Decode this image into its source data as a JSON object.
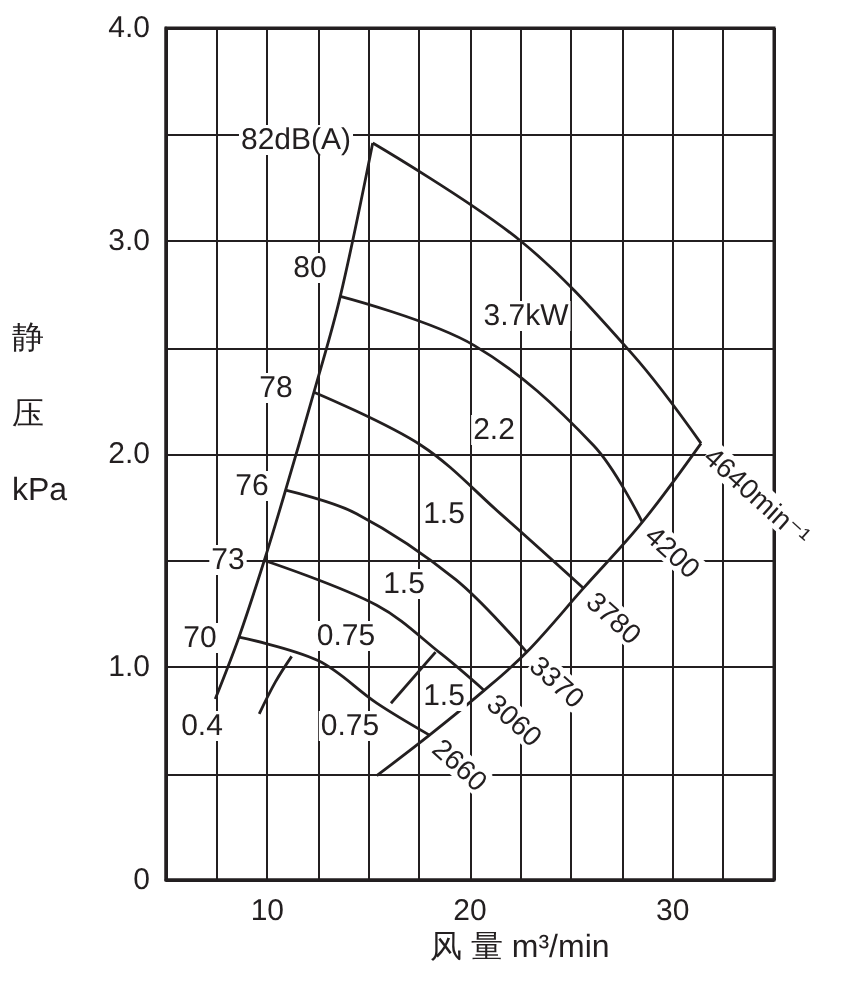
{
  "chart_data": {
    "type": "line",
    "xlabel": "风 量 m³/min",
    "ylabel": "静压 kPa",
    "xlim": [
      5,
      35
    ],
    "ylim": [
      0,
      4
    ],
    "xticks": [
      {
        "value": 5,
        "label": null
      },
      {
        "value": 7.5,
        "label": null
      },
      {
        "value": 10,
        "label": "10"
      },
      {
        "value": 12.5,
        "label": null
      },
      {
        "value": 15,
        "label": null
      },
      {
        "value": 17.5,
        "label": null
      },
      {
        "value": 20,
        "label": "20"
      },
      {
        "value": 22.5,
        "label": null
      },
      {
        "value": 25,
        "label": null
      },
      {
        "value": 27.5,
        "label": null
      },
      {
        "value": 30,
        "label": "30"
      },
      {
        "value": 32.5,
        "label": null
      },
      {
        "value": 35,
        "label": null
      }
    ],
    "yticks": [
      {
        "value": 0,
        "label": "0"
      },
      {
        "value": 0.5,
        "label": null
      },
      {
        "value": 1,
        "label": "1.0"
      },
      {
        "value": 1.5,
        "label": null
      },
      {
        "value": 2,
        "label": "2.0"
      },
      {
        "value": 2.5,
        "label": null
      },
      {
        "value": 3,
        "label": "3.0"
      },
      {
        "value": 3.5,
        "label": null
      },
      {
        "value": 4,
        "label": "4.0"
      }
    ],
    "grid": true,
    "marker": "none",
    "line_style": "solid",
    "series": [
      {
        "name": "2660",
        "color": "#231f20",
        "x": [
          8.6,
          12.5,
          15.4,
          18.0
        ],
        "values": [
          1.14,
          1.03,
          0.83,
          0.68
        ]
      },
      {
        "name": "3060",
        "color": "#231f20",
        "x": [
          9.85,
          15.4,
          18.6,
          20.7
        ],
        "values": [
          1.5,
          1.29,
          1.06,
          0.89
        ]
      },
      {
        "name": "3370",
        "color": "#231f20",
        "x": [
          10.9,
          14.4,
          19.3,
          22.8
        ],
        "values": [
          1.83,
          1.72,
          1.41,
          1.07
        ]
      },
      {
        "name": "3780",
        "color": "#231f20",
        "x": [
          12.3,
          17.6,
          21.5,
          25.6
        ],
        "values": [
          2.29,
          2.04,
          1.72,
          1.37
        ]
      },
      {
        "name": "4200",
        "color": "#231f20",
        "x": [
          13.6,
          20.2,
          26.1,
          28.5
        ],
        "values": [
          2.74,
          2.51,
          2.04,
          1.68
        ]
      },
      {
        "name": "4640min⁻¹",
        "color": "#231f20",
        "x": [
          15.2,
          22.5,
          28.0,
          31.4
        ],
        "values": [
          3.46,
          3.0,
          2.47,
          2.05
        ]
      },
      {
        "color": "#231f20",
        "x": [
          7.43,
          8.6,
          9.85,
          10.9,
          12.3,
          13.6,
          15.2
        ],
        "values": [
          0.85,
          1.14,
          1.5,
          1.83,
          2.29,
          2.74,
          3.46
        ]
      },
      {
        "color": "#231f20",
        "x": [
          15.4,
          18.0,
          20.7,
          22.8,
          25.6,
          28.5,
          31.4
        ],
        "values": [
          0.49,
          0.68,
          0.89,
          1.07,
          1.37,
          1.68,
          2.05
        ]
      },
      {
        "color": "#231f20",
        "x": [
          9.6,
          10.4,
          11.2
        ],
        "values": [
          0.78,
          0.93,
          1.05
        ]
      },
      {
        "color": "#231f20",
        "x": [
          16.1,
          18.3
        ],
        "values": [
          0.83,
          1.07
        ]
      }
    ],
    "annotations": [
      "82dB(A)",
      "80",
      "78",
      "76",
      "73",
      "70",
      "0.4",
      "0.75",
      "0.75",
      "1.5",
      "1.5",
      "1.5",
      "2.2",
      "3.7kW"
    ]
  }
}
